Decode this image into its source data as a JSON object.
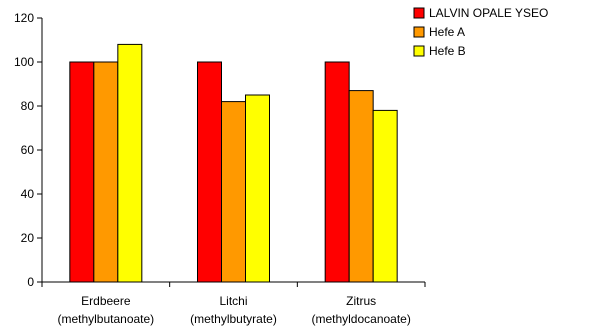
{
  "chart_data": {
    "type": "bar",
    "categories": [
      [
        "Erdbeere",
        "(methylbutanoate)"
      ],
      [
        "Litchi",
        "(methylbutyrate)"
      ],
      [
        "Zitrus",
        "(methyldocanoate)"
      ]
    ],
    "series": [
      {
        "name": "LALVIN OPALE YSEO",
        "color": "#ff0000",
        "values": [
          100,
          100,
          100
        ]
      },
      {
        "name": "Hefe A",
        "color": "#ff9900",
        "values": [
          100,
          82,
          87
        ]
      },
      {
        "name": "Hefe B",
        "color": "#ffff00",
        "values": [
          108,
          85,
          78
        ]
      }
    ],
    "ylim": [
      0,
      120
    ],
    "yticks": [
      "0",
      "20",
      "40",
      "60",
      "80",
      "100",
      "120"
    ],
    "grid": false,
    "legend_position": "top-right",
    "title": "",
    "xlabel": "",
    "ylabel": ""
  }
}
